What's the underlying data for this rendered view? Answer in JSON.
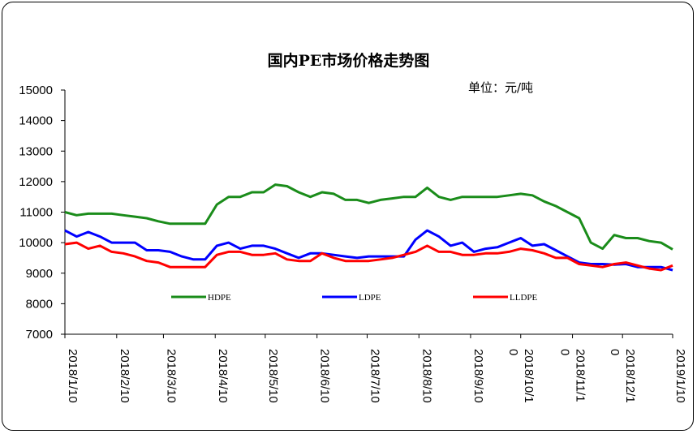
{
  "chart_data": {
    "type": "line",
    "title": "国内PE市场价格走势图",
    "unit": "单位：元/吨",
    "ylim": [
      7000,
      15000
    ],
    "yticks": [
      7000,
      8000,
      9000,
      10000,
      11000,
      12000,
      13000,
      14000,
      15000
    ],
    "xlim": [
      0,
      52
    ],
    "x_labels": [
      {
        "lines": [
          "2018/1/10"
        ],
        "x": 0
      },
      {
        "lines": [
          "2018/2/10"
        ],
        "x": 4.43
      },
      {
        "lines": [
          "2018/3/10"
        ],
        "x": 8.43
      },
      {
        "lines": [
          "2018/4/10"
        ],
        "x": 12.86
      },
      {
        "lines": [
          "2018/5/10"
        ],
        "x": 17.14
      },
      {
        "lines": [
          "2018/6/10"
        ],
        "x": 21.57
      },
      {
        "lines": [
          "2018/7/10"
        ],
        "x": 25.86
      },
      {
        "lines": [
          "2018/8/10"
        ],
        "x": 30.29
      },
      {
        "lines": [
          "2018/9/10"
        ],
        "x": 34.71
      },
      {
        "lines": [
          "2018/10/1",
          "0"
        ],
        "x": 39
      },
      {
        "lines": [
          "2018/11/1",
          "0"
        ],
        "x": 43.43
      },
      {
        "lines": [
          "2018/12/1",
          "0"
        ],
        "x": 47.71
      },
      {
        "lines": [
          "2019/1/10"
        ],
        "x": 52
      }
    ],
    "x": [
      0,
      1,
      2,
      3,
      4,
      5,
      6,
      7,
      8,
      9,
      10,
      11,
      12,
      13,
      14,
      15,
      16,
      17,
      18,
      19,
      20,
      21,
      22,
      23,
      24,
      25,
      26,
      27,
      28,
      29,
      30,
      31,
      32,
      33,
      34,
      35,
      36,
      37,
      38,
      39,
      40,
      41,
      42,
      43,
      44,
      45,
      46,
      47,
      48,
      49,
      50,
      51,
      52
    ],
    "series": [
      {
        "name": "HDPE",
        "color": "#1a8c1a",
        "values": [
          11000,
          10900,
          10950,
          10950,
          10950,
          10900,
          10850,
          10800,
          10700,
          10620,
          10620,
          10620,
          10620,
          11250,
          11500,
          11500,
          11650,
          11650,
          11900,
          11850,
          11650,
          11500,
          11650,
          11600,
          11400,
          11400,
          11300,
          11400,
          11450,
          11500,
          11500,
          11800,
          11500,
          11400,
          11500,
          11500,
          11500,
          11500,
          11550,
          11600,
          11550,
          11350,
          11200,
          11000,
          10800,
          10000,
          9800,
          10250,
          10150,
          10150,
          10050,
          10000,
          9780
        ]
      },
      {
        "name": "LDPE",
        "color": "#0000ff",
        "values": [
          10400,
          10200,
          10350,
          10200,
          10000,
          10000,
          10000,
          9750,
          9750,
          9700,
          9550,
          9450,
          9450,
          9900,
          10000,
          9800,
          9900,
          9900,
          9800,
          9650,
          9500,
          9650,
          9650,
          9600,
          9550,
          9500,
          9550,
          9550,
          9550,
          9550,
          10100,
          10400,
          10200,
          9900,
          10000,
          9700,
          9800,
          9850,
          10000,
          10150,
          9900,
          9950,
          9750,
          9550,
          9350,
          9300,
          9300,
          9280,
          9300,
          9200,
          9200,
          9200,
          9100
        ]
      },
      {
        "name": "LLDPE",
        "color": "#ff0000",
        "values": [
          9950,
          10000,
          9800,
          9900,
          9700,
          9650,
          9550,
          9400,
          9350,
          9200,
          9200,
          9200,
          9200,
          9600,
          9700,
          9700,
          9600,
          9600,
          9650,
          9450,
          9400,
          9400,
          9650,
          9500,
          9400,
          9400,
          9400,
          9450,
          9500,
          9600,
          9700,
          9900,
          9700,
          9700,
          9600,
          9600,
          9650,
          9650,
          9700,
          9800,
          9750,
          9650,
          9500,
          9500,
          9300,
          9250,
          9200,
          9300,
          9350,
          9250,
          9150,
          9100,
          9250
        ]
      }
    ],
    "legend": {
      "position": "inside-bottom",
      "entries": [
        "HDPE",
        "LDPE",
        "LLDPE"
      ]
    },
    "grid": false
  }
}
